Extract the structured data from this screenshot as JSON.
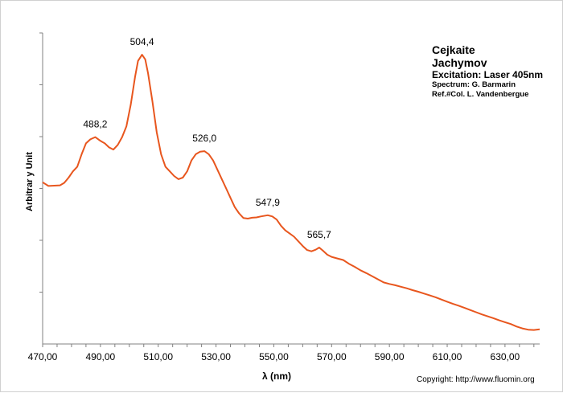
{
  "chart_data": {
    "type": "line",
    "title_lines": [
      "Cejkaite",
      "Jachymov"
    ],
    "subtitle": "Excitation:  Laser 405nm",
    "notes": [
      "Spectrum: G. Barmarin",
      "Ref.#Col. L. Vandenbergue"
    ],
    "xlabel": "λ (nm)",
    "ylabel": "Arbitrar y Unit",
    "xlim": [
      470,
      642
    ],
    "ylim": [
      0,
      100
    ],
    "xticks": [
      "470,00",
      "490,00",
      "510,00",
      "530,00",
      "550,00",
      "570,00",
      "590,00",
      "610,00",
      "630,00"
    ],
    "xtick_values": [
      470,
      490,
      510,
      530,
      550,
      570,
      590,
      610,
      630
    ],
    "grid": false,
    "line_color": "#e8561e",
    "series": [
      {
        "values": [
          [
            470,
            52.0
          ],
          [
            472,
            50.8
          ],
          [
            474,
            50.9
          ],
          [
            476,
            51.0
          ],
          [
            477.5,
            51.8
          ],
          [
            479,
            53.5
          ],
          [
            480.5,
            55.5
          ],
          [
            482,
            57.0
          ],
          [
            483.5,
            61.0
          ],
          [
            485,
            64.5
          ],
          [
            486.5,
            65.8
          ],
          [
            488.2,
            66.5
          ],
          [
            490,
            65.3
          ],
          [
            491.5,
            64.5
          ],
          [
            493,
            63.2
          ],
          [
            494.5,
            62.5
          ],
          [
            496,
            64.0
          ],
          [
            497.5,
            66.5
          ],
          [
            499,
            70.0
          ],
          [
            500.5,
            77.0
          ],
          [
            502,
            86.0
          ],
          [
            503,
            91.0
          ],
          [
            504.4,
            93.0
          ],
          [
            505.5,
            91.5
          ],
          [
            506.5,
            87.0
          ],
          [
            508,
            78.0
          ],
          [
            509.5,
            68.0
          ],
          [
            511,
            61.0
          ],
          [
            512.5,
            57.0
          ],
          [
            514,
            55.5
          ],
          [
            515.5,
            54.0
          ],
          [
            517,
            53.0
          ],
          [
            518.5,
            53.5
          ],
          [
            520,
            55.5
          ],
          [
            521.5,
            59.0
          ],
          [
            523,
            61.0
          ],
          [
            524.5,
            61.8
          ],
          [
            526.0,
            62.0
          ],
          [
            527.5,
            61.0
          ],
          [
            529,
            59.0
          ],
          [
            530.5,
            56.0
          ],
          [
            532,
            53.0
          ],
          [
            533.5,
            50.0
          ],
          [
            535,
            47.0
          ],
          [
            536.5,
            44.0
          ],
          [
            538,
            42.0
          ],
          [
            539.5,
            40.5
          ],
          [
            541,
            40.3
          ],
          [
            542.5,
            40.6
          ],
          [
            544,
            40.7
          ],
          [
            545.5,
            41.0
          ],
          [
            547.9,
            41.4
          ],
          [
            549.5,
            41.0
          ],
          [
            551,
            40.0
          ],
          [
            552.5,
            38.0
          ],
          [
            554,
            36.5
          ],
          [
            555.5,
            35.5
          ],
          [
            557,
            34.5
          ],
          [
            558.5,
            33.0
          ],
          [
            560,
            31.5
          ],
          [
            561.5,
            30.2
          ],
          [
            563,
            29.8
          ],
          [
            564.5,
            30.3
          ],
          [
            565.7,
            31.0
          ],
          [
            567,
            30.0
          ],
          [
            568.5,
            28.7
          ],
          [
            570,
            28.0
          ],
          [
            572,
            27.5
          ],
          [
            574,
            27.0
          ],
          [
            576,
            25.8
          ],
          [
            578,
            24.8
          ],
          [
            580,
            23.7
          ],
          [
            582,
            22.8
          ],
          [
            584,
            21.8
          ],
          [
            586,
            20.8
          ],
          [
            588,
            19.8
          ],
          [
            590,
            19.3
          ],
          [
            592,
            18.9
          ],
          [
            594,
            18.4
          ],
          [
            596,
            17.9
          ],
          [
            598,
            17.3
          ],
          [
            600,
            16.8
          ],
          [
            602,
            16.2
          ],
          [
            604,
            15.6
          ],
          [
            606,
            15.0
          ],
          [
            608,
            14.3
          ],
          [
            610,
            13.6
          ],
          [
            612,
            12.9
          ],
          [
            614,
            12.3
          ],
          [
            616,
            11.6
          ],
          [
            618,
            10.9
          ],
          [
            620,
            10.2
          ],
          [
            622,
            9.5
          ],
          [
            624,
            8.9
          ],
          [
            626,
            8.3
          ],
          [
            628,
            7.6
          ],
          [
            630,
            7.0
          ],
          [
            632,
            6.4
          ],
          [
            634,
            5.6
          ],
          [
            636,
            5.0
          ],
          [
            638,
            4.6
          ],
          [
            640,
            4.5
          ],
          [
            642,
            4.7
          ]
        ]
      }
    ],
    "peak_labels": [
      {
        "x": 488.2,
        "y": 66.5,
        "text": "488,2"
      },
      {
        "x": 504.4,
        "y": 93.0,
        "text": "504,4"
      },
      {
        "x": 526.0,
        "y": 62.0,
        "text": "526,0"
      },
      {
        "x": 547.9,
        "y": 41.4,
        "text": "547,9"
      },
      {
        "x": 565.7,
        "y": 31.0,
        "text": "565,7"
      }
    ]
  },
  "footer": {
    "copyright": "Copyright: http://www.fluomin.org"
  }
}
